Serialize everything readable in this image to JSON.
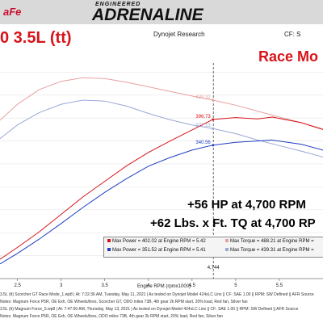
{
  "header": {
    "logo_afe": "aFe",
    "logo_engineered": "ENGINEERED",
    "logo_adrenaline": "ADRENALINE"
  },
  "title": "0 3.5L (tt)",
  "dyno_label": "Dynojet Research",
  "cf_label": "CF: S",
  "mode_label": "Race Mo",
  "annotations": {
    "hp_gain": "+56 HP at 4,700 RPM",
    "tq_gain": "+62 Lbs. x Ft. TQ at 4,700 RP"
  },
  "marker": {
    "rpm": 4744,
    "label": "4,744"
  },
  "legend": {
    "items": [
      {
        "text": "Max Power = 402.02 at Engine RPM = 5.42",
        "color": "#d7141a"
      },
      {
        "text": "Max Power = 351.52 at Engine RPM = 5.41",
        "color": "#1f3fbf"
      },
      {
        "text": "Max Torque = 488.21 at Engine RPM =",
        "color": "#e8a0a0"
      },
      {
        "text": "Max Torque = 439.31 at Engine RPM =",
        "color": "#9aa8d8"
      }
    ]
  },
  "footer": {
    "lines": [
      "3.5L (tt) Scorcher GT Race Mode_1.wp8 | At: 7:22:36 AM, Tuesday, May 11, 2021 | As tested on Dynojet Model 424xLC Linx || CF: SAE 1.00 || RPM: SW Defined || AFR Source",
      "Notes: Magnum Force P5R, OE Exh, OE Wheels/tires, Scorcher GT, ODO miles 73B, 4th gear 2k RPM start, 20% load, Red fan, Silver fan",
      "3.5L (tt) Magnum Force_5.wp8 | At: 7:47:50 AM, Thursday, May 13, 2021 | As tested on Dynojet Model 424xLC Linx || CF: SAE 1.00 || RPM: SW Defined || AFR Source",
      "Notes: Magnum Force P5R, OE Exh, OE Wheels/tires, ODO miles 73B, 4th gear 2k RPM start, 20% load, Red fan, Silver fan"
    ]
  },
  "chart_data": {
    "type": "line",
    "title": "",
    "xlabel": "Engine RPM (rpmx1000)",
    "ylabel": "",
    "xlim": [
      2.3,
      6.0
    ],
    "ylim": [
      50,
      520
    ],
    "x_ticks": [
      "2.5",
      "3",
      "3.5",
      "4",
      "4.5",
      "5",
      "5.5"
    ],
    "data_labels": [
      {
        "text": "439.32",
        "x": 4.74,
        "y": 439.32,
        "color": "#e8a0a0"
      },
      {
        "text": "396.73",
        "x": 4.74,
        "y": 396.73,
        "color": "#d7141a"
      },
      {
        "text": "377.13",
        "x": 4.74,
        "y": 377.13,
        "color": "#9aa8d8"
      },
      {
        "text": "340.56",
        "x": 4.74,
        "y": 340.56,
        "color": "#1f3fbf"
      }
    ],
    "series": [
      {
        "name": "Max Torque = 488.21",
        "color": "#e8a0a0",
        "x": [
          2.3,
          2.5,
          2.75,
          3.0,
          3.25,
          3.5,
          3.75,
          4.0,
          4.25,
          4.5,
          4.74,
          5.0,
          5.25,
          5.5,
          5.75,
          6.0
        ],
        "y": [
          395,
          430,
          462,
          480,
          488,
          486,
          478,
          468,
          458,
          448,
          439,
          428,
          415,
          402,
          390,
          376
        ]
      },
      {
        "name": "Max Torque = 439.31",
        "color": "#9aa8d8",
        "x": [
          2.3,
          2.5,
          2.75,
          3.0,
          3.25,
          3.5,
          3.75,
          4.0,
          4.25,
          4.5,
          4.74,
          5.0,
          5.25,
          5.5,
          5.75,
          6.0
        ],
        "y": [
          355,
          385,
          412,
          430,
          439,
          437,
          426,
          410,
          396,
          385,
          377,
          366,
          352,
          340,
          328,
          315
        ]
      },
      {
        "name": "Max Power = 402.02",
        "color": "#d7141a",
        "x": [
          2.3,
          2.5,
          2.75,
          3.0,
          3.25,
          3.5,
          3.75,
          4.0,
          4.25,
          4.5,
          4.74,
          5.0,
          5.25,
          5.42,
          5.75,
          6.0
        ],
        "y": [
          92,
          118,
          152,
          190,
          228,
          262,
          296,
          325,
          350,
          374,
          397,
          401,
          398,
          402,
          390,
          375
        ]
      },
      {
        "name": "Max Power = 351.52",
        "color": "#1f3fbf",
        "x": [
          2.3,
          2.5,
          2.75,
          3.0,
          3.25,
          3.5,
          3.75,
          4.0,
          4.25,
          4.5,
          4.74,
          5.0,
          5.25,
          5.41,
          5.75,
          6.0
        ],
        "y": [
          82,
          105,
          136,
          170,
          205,
          238,
          268,
          295,
          314,
          330,
          341,
          347,
          350,
          352,
          343,
          330
        ]
      }
    ],
    "grid": true,
    "legend_position": "bottom-right"
  }
}
